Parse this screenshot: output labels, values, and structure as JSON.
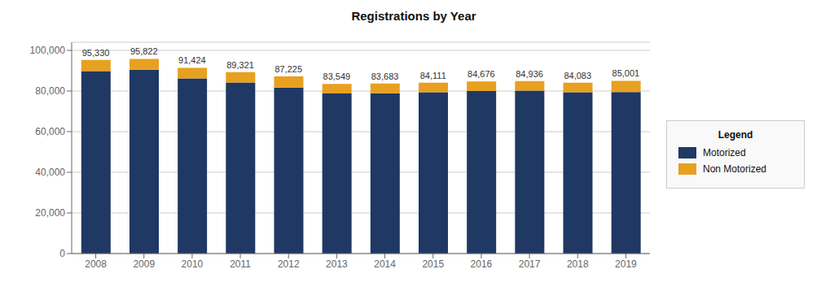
{
  "chart_data": {
    "type": "bar",
    "title": "Registrations by Year",
    "stacked": true,
    "categories": [
      "2008",
      "2009",
      "2010",
      "2011",
      "2012",
      "2013",
      "2014",
      "2015",
      "2016",
      "2017",
      "2018",
      "2019"
    ],
    "series": [
      {
        "name": "Motorized",
        "color": "#1F3864",
        "values": [
          89800,
          90500,
          86200,
          84200,
          81700,
          78800,
          78900,
          79400,
          80000,
          80200,
          79400,
          79500
        ]
      },
      {
        "name": "Non Motorized",
        "color": "#E8A020",
        "values": [
          5530,
          5322,
          5224,
          5121,
          5525,
          4749,
          4783,
          4711,
          4676,
          4736,
          4683,
          5501
        ]
      }
    ],
    "totals": [
      {
        "value": 95330,
        "label": "95,330"
      },
      {
        "value": 95822,
        "label": "95,822"
      },
      {
        "value": 91424,
        "label": "91,424"
      },
      {
        "value": 89321,
        "label": "89,321"
      },
      {
        "value": 87225,
        "label": "87,225"
      },
      {
        "value": 83549,
        "label": "83,549"
      },
      {
        "value": 83683,
        "label": "83,683"
      },
      {
        "value": 84111,
        "label": "84,111"
      },
      {
        "value": 84676,
        "label": "84,676"
      },
      {
        "value": 84936,
        "label": "84,936"
      },
      {
        "value": 84083,
        "label": "84,083"
      },
      {
        "value": 85001,
        "label": "85,001"
      }
    ],
    "ylim": [
      0,
      104000
    ],
    "yticks": [
      0,
      {
        "value": 20000,
        "label": "20,000"
      },
      {
        "value": 40000,
        "label": "40,000"
      },
      {
        "value": 60000,
        "label": "60,000"
      },
      {
        "value": 80000,
        "label": "80,000"
      },
      {
        "value": 100000,
        "label": "100,000"
      }
    ],
    "grid": true,
    "legend": "right",
    "legend_title": "Legend"
  }
}
